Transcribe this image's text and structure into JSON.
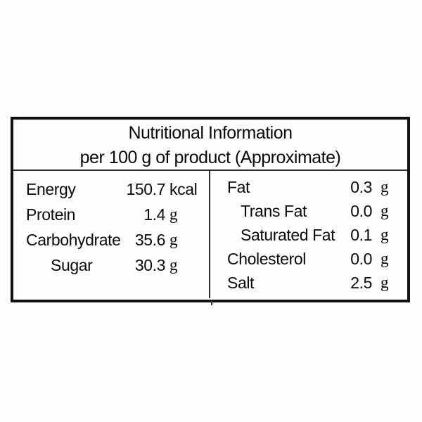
{
  "header": {
    "line1": "Nutritional Information",
    "line2": "per 100 g of product (Approximate)"
  },
  "columns": {
    "left": [
      {
        "label": "Energy",
        "value": "150.7",
        "unit": "kcal"
      },
      {
        "label": "Protein",
        "value": "1.4",
        "unit": "g"
      },
      {
        "label": "Carbohydrate",
        "value": "35.6",
        "unit": "g"
      },
      {
        "label": "Sugar",
        "value": "30.3",
        "unit": "g"
      }
    ],
    "right": [
      {
        "label": "Fat",
        "value": "0.3",
        "unit": "g"
      },
      {
        "label": "Trans Fat",
        "value": "0.0",
        "unit": "g"
      },
      {
        "label": "Saturated Fat",
        "value": "0.1",
        "unit": "g"
      },
      {
        "label": "Cholesterol",
        "value": "0.0",
        "unit": "g"
      },
      {
        "label": "Salt",
        "value": "2.5",
        "unit": "g"
      }
    ]
  },
  "colors": {
    "border": "#101010",
    "text": "#0a0a0a",
    "background": "#fefefe"
  }
}
